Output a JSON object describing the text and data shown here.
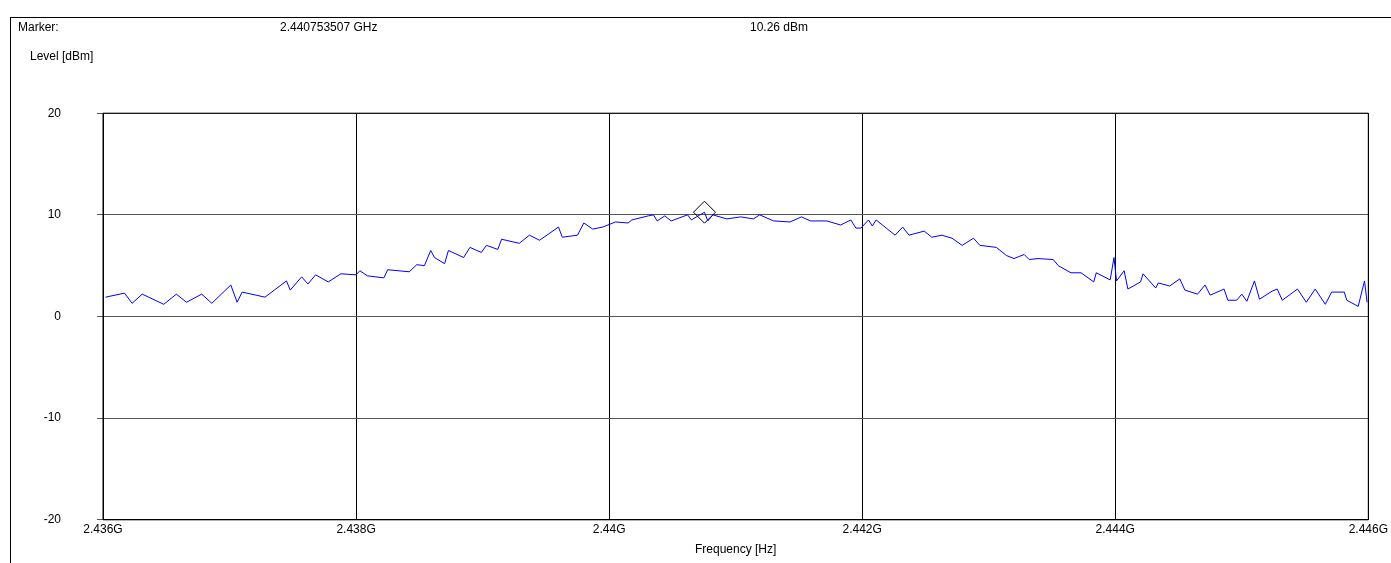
{
  "chart_data": {
    "type": "line",
    "xlabel": "Frequency [Hz]",
    "ylabel": "Level [dBm]",
    "annotations": [
      "Marker:",
      "2.440753507 GHz",
      "10.26 dBm"
    ],
    "xlim": [
      2.436,
      2.446
    ],
    "xticks": [
      {
        "value": 2.436,
        "label": "2.436G"
      },
      {
        "value": 2.438,
        "label": "2.438G"
      },
      {
        "value": 2.44,
        "label": "2.44G"
      },
      {
        "value": 2.442,
        "label": "2.442G"
      },
      {
        "value": 2.444,
        "label": "2.444G"
      },
      {
        "value": 2.446,
        "label": "2.446G"
      }
    ],
    "ylim": [
      -20,
      20
    ],
    "yticks": [
      -20,
      -10,
      0,
      10,
      20
    ],
    "grid": true,
    "series": [
      {
        "color": "#0000ff",
        "marker": "none",
        "x": [
          2.43602,
          2.43617,
          2.43623,
          2.43631,
          2.43648,
          2.43658,
          2.43666,
          2.43678,
          2.43686,
          2.43701,
          2.43706,
          2.4371,
          2.43721,
          2.43728,
          2.43745,
          2.43748,
          2.43757,
          2.43762,
          2.43768,
          2.43778,
          2.43788,
          2.438,
          2.43803,
          2.43809,
          2.43822,
          2.43825,
          2.43842,
          2.43848,
          2.43854,
          2.43859,
          2.43862,
          2.4387,
          2.43873,
          2.43885,
          2.4389,
          2.43899,
          2.43903,
          2.43912,
          2.43915,
          2.43929,
          2.43937,
          2.43945,
          2.4396,
          2.43963,
          2.43975,
          2.4398,
          2.43987,
          2.43995,
          2.44005,
          2.44015,
          2.44018,
          2.44031,
          2.44035,
          2.44038,
          2.44044,
          2.44049,
          2.44062,
          2.44065,
          2.440753507,
          2.44078,
          2.44082,
          2.44093,
          2.44104,
          2.44114,
          2.44119,
          2.4413,
          2.44143,
          2.44152,
          2.44159,
          2.44172,
          2.44183,
          2.44191,
          2.44195,
          2.44199,
          2.44205,
          2.44208,
          2.44211,
          2.44219,
          2.44226,
          2.44232,
          2.44237,
          2.44249,
          2.44255,
          2.44263,
          2.44271,
          2.44279,
          2.44288,
          2.44293,
          2.44306,
          2.44314,
          2.4432,
          2.44328,
          2.44332,
          2.44339,
          2.44351,
          2.44355,
          2.44365,
          2.44373,
          2.44383,
          2.44385,
          2.44396,
          2.44399,
          2.44401,
          2.44407,
          2.4441,
          2.4442,
          2.44422,
          2.44432,
          2.44434,
          2.44443,
          2.44451,
          2.44455,
          2.44465,
          2.44471,
          2.44475,
          2.44486,
          2.44489,
          2.44496,
          2.445,
          2.44504,
          2.4451,
          2.44514,
          2.44524,
          2.44528,
          2.44532,
          2.44544,
          2.44551,
          2.44558,
          2.44566,
          2.44571,
          2.44581,
          2.44583,
          2.44592,
          2.44597,
          2.44599
        ],
        "values": [
          1.9,
          2.3,
          1.3,
          2.2,
          1.2,
          2.2,
          1.4,
          2.2,
          1.3,
          3.1,
          1.4,
          2.4,
          2.1,
          1.9,
          3.5,
          2.6,
          3.9,
          3.2,
          4.1,
          3.4,
          4.2,
          4.1,
          4.5,
          4.0,
          3.8,
          4.6,
          4.4,
          5.1,
          5.0,
          6.5,
          5.8,
          5.2,
          6.5,
          5.8,
          6.8,
          6.3,
          7.0,
          6.6,
          7.6,
          7.2,
          8.0,
          7.5,
          8.8,
          7.8,
          8.0,
          9.2,
          8.6,
          8.8,
          9.3,
          9.2,
          9.5,
          9.9,
          10.0,
          9.4,
          9.9,
          9.4,
          10.0,
          9.5,
          10.26,
          9.4,
          10.0,
          9.6,
          9.8,
          9.6,
          10.0,
          9.4,
          9.3,
          9.8,
          9.4,
          9.4,
          9.0,
          9.5,
          8.7,
          8.7,
          9.5,
          8.9,
          9.5,
          8.7,
          8.0,
          8.8,
          8.0,
          8.4,
          7.8,
          8.0,
          7.7,
          7.0,
          7.7,
          7.0,
          6.8,
          6.0,
          5.7,
          6.1,
          5.6,
          5.7,
          5.6,
          5.0,
          4.3,
          4.3,
          3.4,
          4.3,
          3.6,
          5.8,
          3.5,
          4.5,
          2.7,
          3.4,
          4.2,
          2.8,
          3.3,
          3.0,
          3.7,
          2.6,
          2.2,
          3.1,
          2.1,
          2.7,
          1.6,
          1.6,
          2.2,
          1.5,
          3.5,
          1.7,
          2.5,
          2.7,
          1.6,
          2.7,
          1.4,
          2.7,
          1.2,
          2.4,
          2.4,
          1.6,
          1.0,
          3.5,
          1.4
        ]
      },
      {
        "type": "scatter",
        "color": "#000000",
        "marker": "diamond",
        "x": [
          2.440753507
        ],
        "values": [
          10.26
        ]
      }
    ]
  }
}
